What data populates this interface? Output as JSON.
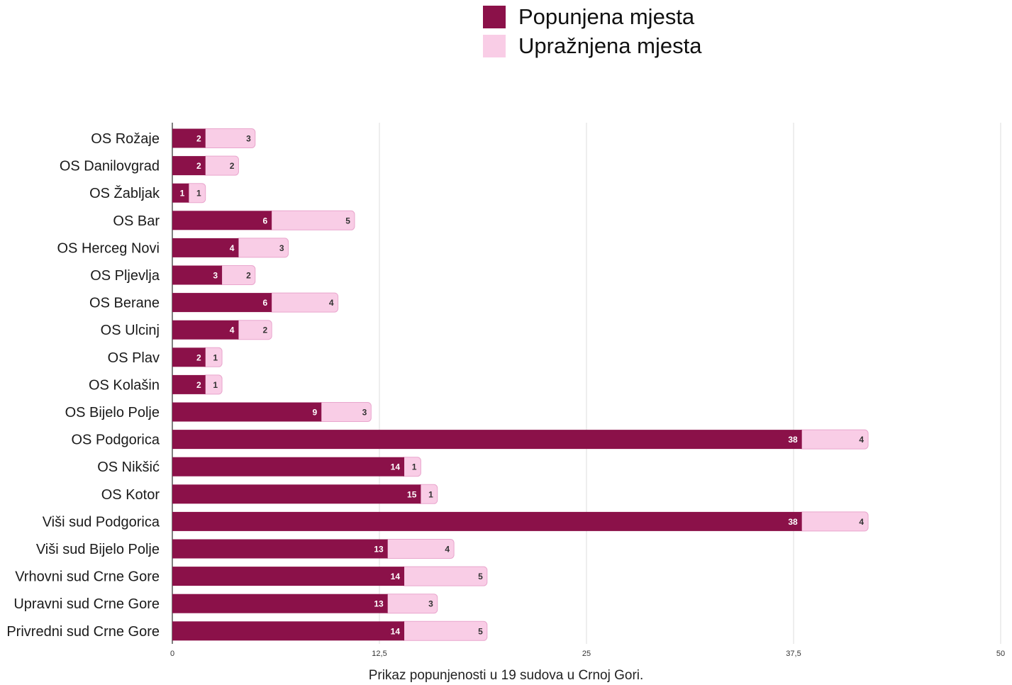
{
  "colors": {
    "filled": "#8b1149",
    "vacant": "#f9cde6",
    "vacant_stroke": "#e9a6cd",
    "grid": "#dddddd",
    "axis": "#555555"
  },
  "legend": {
    "filled_label": "Popunjena mjesta",
    "vacant_label": "Upražnjena mjesta",
    "position": "top-right"
  },
  "caption": "Prikaz popunjenosti u 19 sudova u Crnoj Gori.",
  "chart_data": {
    "type": "bar",
    "orientation": "horizontal",
    "stacked": true,
    "categories": [
      "OS Rožaje",
      "OS Danilovgrad",
      "OS Žabljak",
      "OS Bar",
      "OS Herceg Novi",
      "OS Pljevlja",
      "OS Berane",
      "OS Ulcinj",
      "OS Plav",
      "OS Kolašin",
      "OS Bijelo Polje",
      "OS Podgorica",
      "OS Nikšić",
      "OS Kotor",
      "Viši sud Podgorica",
      "Viši sud Bijelo Polje",
      "Vrhovni sud Crne Gore",
      "Upravni sud Crne Gore",
      "Privredni sud Crne Gore"
    ],
    "series": [
      {
        "name": "Popunjena mjesta",
        "values": [
          2,
          2,
          1,
          6,
          4,
          3,
          6,
          4,
          2,
          2,
          9,
          38,
          14,
          15,
          38,
          13,
          14,
          13,
          14
        ]
      },
      {
        "name": "Upražnjena mjesta",
        "values": [
          3,
          2,
          1,
          5,
          3,
          2,
          4,
          2,
          1,
          1,
          3,
          4,
          1,
          1,
          4,
          4,
          5,
          3,
          5
        ]
      }
    ],
    "xlim": [
      0,
      50
    ],
    "xticks": [
      0,
      12.5,
      25,
      37.5,
      50
    ],
    "xtick_labels": [
      "0",
      "12,5",
      "25",
      "37,5",
      "50"
    ],
    "grid": true,
    "legend": "top-right"
  }
}
